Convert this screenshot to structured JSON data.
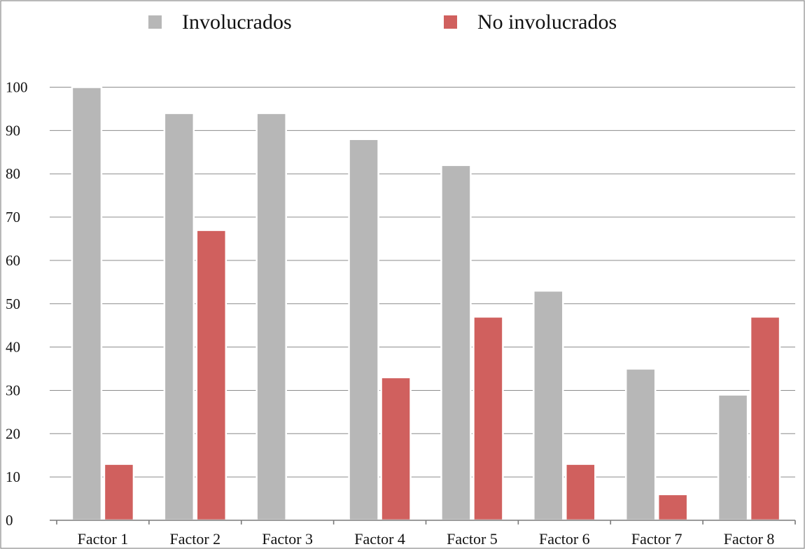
{
  "chart_data": {
    "type": "bar",
    "title": "",
    "xlabel": "",
    "ylabel": "",
    "categories": [
      "Factor 1",
      "Factor 2",
      "Factor 3",
      "Factor 4",
      "Factor 5",
      "Factor 6",
      "Factor 7",
      "Factor 8"
    ],
    "series": [
      {
        "name": "Involucrados",
        "color": "#b7b7b7",
        "values": [
          100,
          94,
          94,
          88,
          82,
          53,
          35,
          29
        ]
      },
      {
        "name": "No involucrados",
        "color": "#d0605e",
        "values": [
          13,
          67,
          0,
          33,
          47,
          13,
          6,
          47
        ]
      }
    ],
    "ylim": [
      0,
      100
    ],
    "yticks": [
      0,
      10,
      20,
      30,
      40,
      50,
      60,
      70,
      80,
      90,
      100
    ],
    "grid": true,
    "legend": "top"
  }
}
